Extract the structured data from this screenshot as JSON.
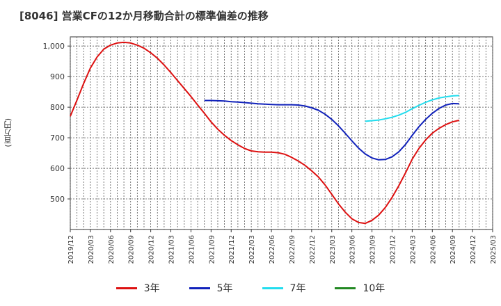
{
  "title": "[8046]  営業CFの12か月移動合計の標準偏差の推移",
  "y_unit_label": "(百万円)",
  "chart_data": {
    "type": "line",
    "title": "[8046]  営業CFの12か月移動合計の標準偏差の推移",
    "ylabel": "(百万円)",
    "ylim": [
      400,
      1030
    ],
    "yticks": [
      500,
      600,
      700,
      800,
      900,
      1000
    ],
    "ytick_labels": [
      "500",
      "600",
      "700",
      "800",
      "900",
      "1,000"
    ],
    "xlim": [
      "2019/12",
      "2025/03"
    ],
    "xtick_labels": [
      "2019/12",
      "2020/03",
      "2020/06",
      "2020/09",
      "2020/12",
      "2021/03",
      "2021/06",
      "2021/09",
      "2021/12",
      "2022/03",
      "2022/06",
      "2022/09",
      "2022/12",
      "2023/03",
      "2023/06",
      "2023/09",
      "2023/12",
      "2024/03",
      "2024/06",
      "2024/09",
      "2024/12",
      "2025/03"
    ],
    "grid": true,
    "legend_position": "bottom",
    "series": [
      {
        "name": "3年",
        "color": "#dd1111",
        "points": [
          [
            "2019/12",
            770
          ],
          [
            "2020/01",
            823
          ],
          [
            "2020/02",
            878
          ],
          [
            "2020/03",
            928
          ],
          [
            "2020/04",
            964
          ],
          [
            "2020/05",
            990
          ],
          [
            "2020/06",
            1003
          ],
          [
            "2020/07",
            1010
          ],
          [
            "2020/08",
            1012
          ],
          [
            "2020/09",
            1010
          ],
          [
            "2020/10",
            1003
          ],
          [
            "2020/11",
            993
          ],
          [
            "2020/12",
            978
          ],
          [
            "2021/01",
            960
          ],
          [
            "2021/02",
            938
          ],
          [
            "2021/03",
            913
          ],
          [
            "2021/04",
            887
          ],
          [
            "2021/05",
            861
          ],
          [
            "2021/06",
            835
          ],
          [
            "2021/07",
            807
          ],
          [
            "2021/08",
            780
          ],
          [
            "2021/09",
            752
          ],
          [
            "2021/10",
            728
          ],
          [
            "2021/11",
            708
          ],
          [
            "2021/12",
            691
          ],
          [
            "2022/01",
            677
          ],
          [
            "2022/02",
            665
          ],
          [
            "2022/03",
            657
          ],
          [
            "2022/04",
            654
          ],
          [
            "2022/05",
            653
          ],
          [
            "2022/06",
            653
          ],
          [
            "2022/07",
            651
          ],
          [
            "2022/08",
            646
          ],
          [
            "2022/09",
            636
          ],
          [
            "2022/10",
            624
          ],
          [
            "2022/11",
            610
          ],
          [
            "2022/12",
            592
          ],
          [
            "2023/01",
            572
          ],
          [
            "2023/02",
            546
          ],
          [
            "2023/03",
            515
          ],
          [
            "2023/04",
            484
          ],
          [
            "2023/05",
            457
          ],
          [
            "2023/06",
            435
          ],
          [
            "2023/07",
            423
          ],
          [
            "2023/08",
            420
          ],
          [
            "2023/09",
            430
          ],
          [
            "2023/10",
            447
          ],
          [
            "2023/11",
            472
          ],
          [
            "2023/12",
            505
          ],
          [
            "2024/01",
            543
          ],
          [
            "2024/02",
            585
          ],
          [
            "2024/03",
            630
          ],
          [
            "2024/04",
            665
          ],
          [
            "2024/05",
            693
          ],
          [
            "2024/06",
            715
          ],
          [
            "2024/07",
            731
          ],
          [
            "2024/08",
            743
          ],
          [
            "2024/09",
            752
          ],
          [
            "2024/10",
            757
          ]
        ]
      },
      {
        "name": "5年",
        "color": "#1122bb",
        "points": [
          [
            "2021/08",
            822
          ],
          [
            "2021/09",
            822
          ],
          [
            "2021/10",
            821
          ],
          [
            "2021/11",
            820
          ],
          [
            "2021/12",
            818
          ],
          [
            "2022/01",
            817
          ],
          [
            "2022/02",
            815
          ],
          [
            "2022/03",
            813
          ],
          [
            "2022/04",
            811
          ],
          [
            "2022/05",
            810
          ],
          [
            "2022/06",
            809
          ],
          [
            "2022/07",
            808
          ],
          [
            "2022/08",
            808
          ],
          [
            "2022/09",
            808
          ],
          [
            "2022/10",
            807
          ],
          [
            "2022/11",
            804
          ],
          [
            "2022/12",
            798
          ],
          [
            "2023/01",
            790
          ],
          [
            "2023/02",
            777
          ],
          [
            "2023/03",
            760
          ],
          [
            "2023/04",
            739
          ],
          [
            "2023/05",
            715
          ],
          [
            "2023/06",
            690
          ],
          [
            "2023/07",
            666
          ],
          [
            "2023/08",
            647
          ],
          [
            "2023/09",
            634
          ],
          [
            "2023/10",
            628
          ],
          [
            "2023/11",
            629
          ],
          [
            "2023/12",
            638
          ],
          [
            "2024/01",
            654
          ],
          [
            "2024/02",
            678
          ],
          [
            "2024/03",
            708
          ],
          [
            "2024/04",
            736
          ],
          [
            "2024/05",
            760
          ],
          [
            "2024/06",
            780
          ],
          [
            "2024/07",
            796
          ],
          [
            "2024/08",
            807
          ],
          [
            "2024/09",
            812
          ],
          [
            "2024/10",
            811
          ]
        ]
      },
      {
        "name": "7年",
        "color": "#22ddee",
        "points": [
          [
            "2023/08",
            754
          ],
          [
            "2023/09",
            756
          ],
          [
            "2023/10",
            758
          ],
          [
            "2023/11",
            762
          ],
          [
            "2023/12",
            767
          ],
          [
            "2024/01",
            774
          ],
          [
            "2024/02",
            783
          ],
          [
            "2024/03",
            795
          ],
          [
            "2024/04",
            806
          ],
          [
            "2024/05",
            816
          ],
          [
            "2024/06",
            824
          ],
          [
            "2024/07",
            830
          ],
          [
            "2024/08",
            834
          ],
          [
            "2024/09",
            837
          ],
          [
            "2024/10",
            838
          ]
        ]
      },
      {
        "name": "10年",
        "color": "#228822",
        "points": []
      }
    ]
  }
}
